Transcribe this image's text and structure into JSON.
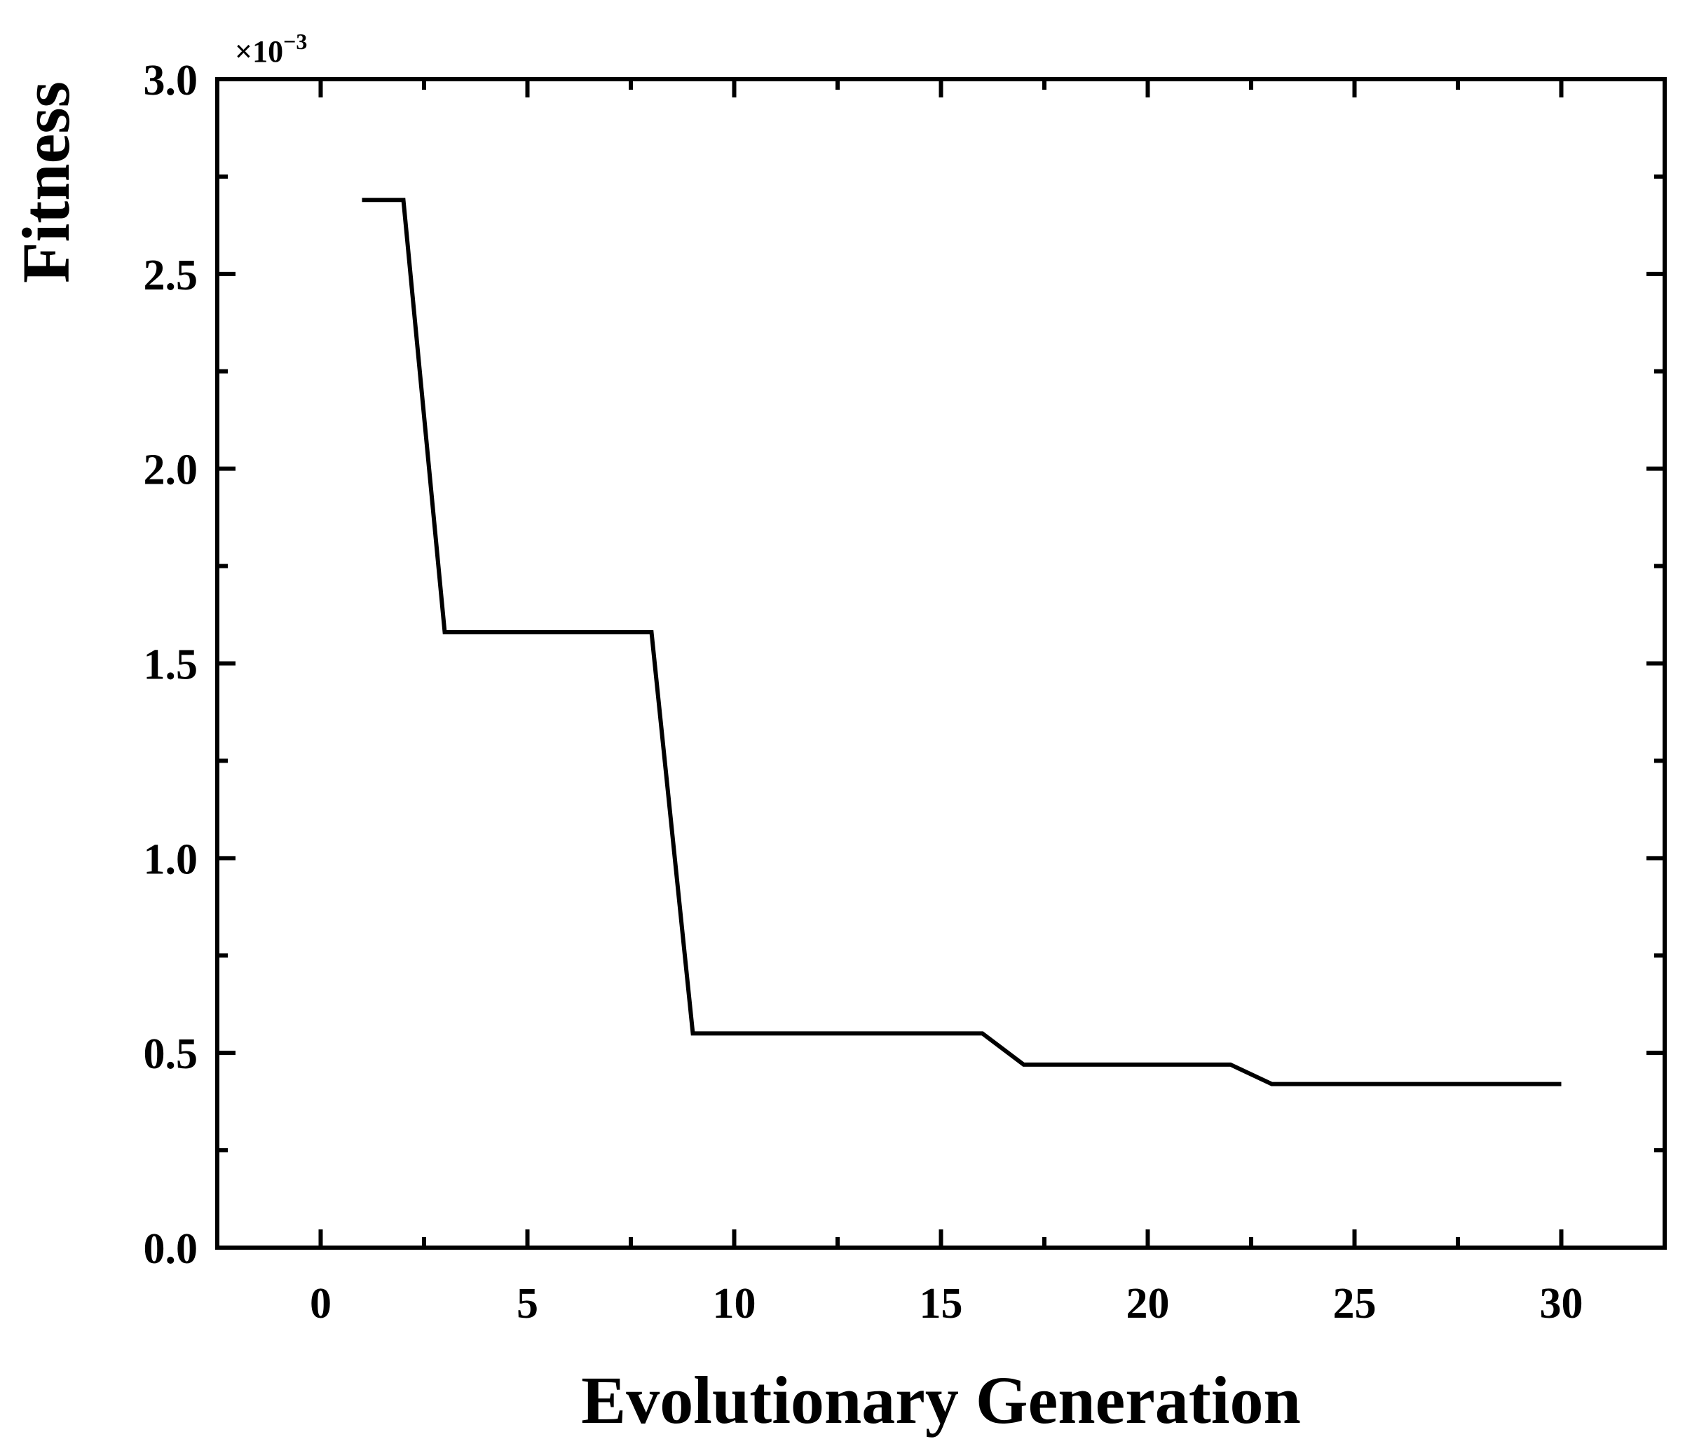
{
  "chart_data": {
    "type": "line",
    "title": "",
    "xlabel": "Evolutionary Generation",
    "ylabel": "Fitness",
    "y_multiplier": {
      "base": "×10",
      "exponent": "−3"
    },
    "xlim": [
      -2.5,
      32.5
    ],
    "ylim": [
      0.0,
      3.0
    ],
    "xticks": [
      0,
      5,
      10,
      15,
      20,
      25,
      30
    ],
    "xtick_labels": [
      "0",
      "5",
      "10",
      "15",
      "20",
      "25",
      "30"
    ],
    "yticks": [
      0.0,
      0.5,
      1.0,
      1.5,
      2.0,
      2.5,
      3.0
    ],
    "ytick_labels": [
      "0.0",
      "0.5",
      "1.0",
      "1.5",
      "2.0",
      "2.5",
      "3.0"
    ],
    "grid": false,
    "line_color": "#000000",
    "series": [
      {
        "x": [
          1,
          2,
          3,
          4,
          5,
          6,
          7,
          8,
          9,
          10,
          11,
          12,
          13,
          14,
          15,
          16,
          17,
          18,
          19,
          20,
          21,
          22,
          23,
          24,
          25,
          26,
          27,
          28,
          29,
          30
        ],
        "values": [
          2.69,
          2.69,
          1.58,
          1.58,
          1.58,
          1.58,
          1.58,
          1.58,
          0.55,
          0.55,
          0.55,
          0.55,
          0.55,
          0.55,
          0.55,
          0.55,
          0.47,
          0.47,
          0.47,
          0.47,
          0.47,
          0.47,
          0.42,
          0.42,
          0.42,
          0.42,
          0.42,
          0.42,
          0.42,
          0.42
        ]
      }
    ]
  }
}
